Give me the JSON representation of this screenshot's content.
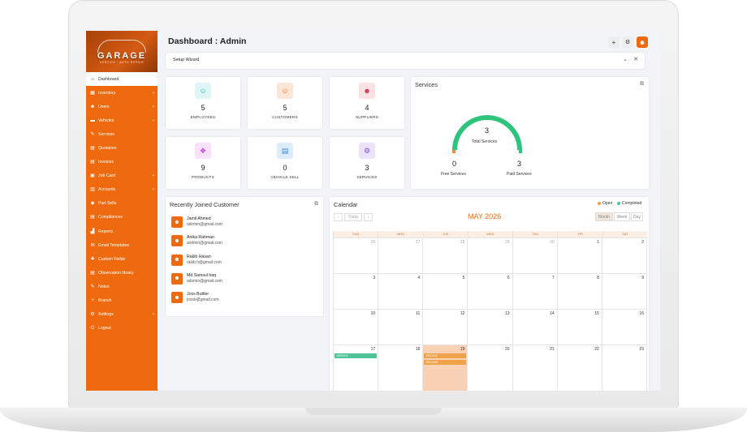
{
  "brand": {
    "name": "GARAGE",
    "tagline": "SERVICE · AUTO REPAIR"
  },
  "sidebar": {
    "items": [
      {
        "label": "Dashboard",
        "icon": "home-icon",
        "glyph": "⌂",
        "caret": false,
        "active": true
      },
      {
        "label": "Inventory",
        "icon": "box-icon",
        "glyph": "▦",
        "caret": true,
        "active": false
      },
      {
        "label": "Users",
        "icon": "user-icon",
        "glyph": "☻",
        "caret": true,
        "active": false
      },
      {
        "label": "Vehicles",
        "icon": "car-icon",
        "glyph": "▬",
        "caret": true,
        "active": false
      },
      {
        "label": "Services",
        "icon": "wrench-icon",
        "glyph": "✎",
        "caret": false,
        "active": false
      },
      {
        "label": "Quotation",
        "icon": "file-icon",
        "glyph": "▤",
        "caret": false,
        "active": false
      },
      {
        "label": "Invoices",
        "icon": "invoice-icon",
        "glyph": "▤",
        "caret": false,
        "active": false
      },
      {
        "label": "Job Card",
        "icon": "briefcase-icon",
        "glyph": "▣",
        "caret": true,
        "active": false
      },
      {
        "label": "Accounts",
        "icon": "wallet-icon",
        "glyph": "▥",
        "caret": true,
        "active": false
      },
      {
        "label": "Part Sells",
        "icon": "tag-icon",
        "glyph": "◆",
        "caret": false,
        "active": false
      },
      {
        "label": "Compliances",
        "icon": "document-icon",
        "glyph": "▤",
        "caret": false,
        "active": false
      },
      {
        "label": "Reports",
        "icon": "chart-icon",
        "glyph": "▟",
        "caret": false,
        "active": false
      },
      {
        "label": "Email Templates",
        "icon": "mail-icon",
        "glyph": "✉",
        "caret": false,
        "active": false
      },
      {
        "label": "Custom Fields",
        "icon": "puzzle-icon",
        "glyph": "✚",
        "caret": false,
        "active": false
      },
      {
        "label": "Observation library",
        "icon": "book-icon",
        "glyph": "▤",
        "caret": false,
        "active": false
      },
      {
        "label": "Notes",
        "icon": "note-icon",
        "glyph": "✎",
        "caret": false,
        "active": false
      },
      {
        "label": "Branch",
        "icon": "branch-icon",
        "glyph": "⑂",
        "caret": false,
        "active": false
      },
      {
        "label": "Settings",
        "icon": "gear-icon",
        "glyph": "⚙",
        "caret": true,
        "active": false
      },
      {
        "label": "Logout",
        "icon": "power-icon",
        "glyph": "⏻",
        "caret": false,
        "active": false
      }
    ]
  },
  "header": {
    "title": "Dashboard : Admin"
  },
  "wizard": {
    "label": "Setup Wizard"
  },
  "stats": [
    {
      "value": "5",
      "label": "EMPLOYEES",
      "icon": "employee-icon",
      "glyph": "☺",
      "color": "#1fb5b5",
      "bg": "#dff6f5"
    },
    {
      "value": "5",
      "label": "CUSTOMERS",
      "icon": "customer-icon",
      "glyph": "☺",
      "color": "#ef6a0e",
      "bg": "#fde6d7"
    },
    {
      "value": "4",
      "label": "SUPPLIERS",
      "icon": "suppliers-icon",
      "glyph": "☻",
      "color": "#d6324a",
      "bg": "#fbe1e4"
    },
    {
      "value": "9",
      "label": "PRODUCTS",
      "icon": "products-icon",
      "glyph": "❖",
      "color": "#c03bd6",
      "bg": "#f7e1fb"
    },
    {
      "value": "0",
      "label": "VEHICLE SELL",
      "icon": "vehicle-sell-icon",
      "glyph": "▤",
      "color": "#3b8ad6",
      "bg": "#dcecfb"
    },
    {
      "value": "3",
      "label": "SERVICES",
      "icon": "services-icon",
      "glyph": "⚙",
      "color": "#7b4bd6",
      "bg": "#ebe2fb"
    }
  ],
  "services": {
    "title": "Services",
    "total": "3",
    "total_label": "Total Services",
    "free": "0",
    "free_label": "Free Services",
    "paid": "3",
    "paid_label": "Paid Services",
    "paid_fraction": 1.0,
    "colors": {
      "paid": "#2ec47c",
      "free": "#ef8a4a"
    }
  },
  "customers": {
    "title": "Recently Joined Customer",
    "items": [
      {
        "name": "Jamil Ahmed",
        "email": "adcmin@gmail.com"
      },
      {
        "name": "Anika Rahman",
        "email": "avdmin@gmail.com"
      },
      {
        "name": "Rakib Hasan",
        "email": "rakib.h@gmail.com"
      },
      {
        "name": "Md Samsul haq",
        "email": "adsmin@gmail.com"
      },
      {
        "name": "Joss Buttler",
        "email": "jossb@gmail.com"
      }
    ]
  },
  "calendar": {
    "title": "Calendar",
    "legend": [
      {
        "label": "Open",
        "color": "#f0a248"
      },
      {
        "label": "Completed",
        "color": "#4fc49a"
      }
    ],
    "today_label": "Today",
    "month_label": "MAY 2026",
    "views": [
      "Month",
      "Week",
      "Day"
    ],
    "active_view": "Month",
    "weekdays": [
      "SUN",
      "MON",
      "TUE",
      "WED",
      "THU",
      "FRI",
      "SAT"
    ],
    "weeks": [
      [
        {
          "n": "26",
          "muted": true
        },
        {
          "n": "27",
          "muted": true
        },
        {
          "n": "28",
          "muted": true
        },
        {
          "n": "29",
          "muted": true
        },
        {
          "n": "30",
          "muted": true
        },
        {
          "n": "1"
        },
        {
          "n": "2"
        }
      ],
      [
        {
          "n": "3"
        },
        {
          "n": "4"
        },
        {
          "n": "5"
        },
        {
          "n": "6"
        },
        {
          "n": "7"
        },
        {
          "n": "8"
        },
        {
          "n": "9"
        }
      ],
      [
        {
          "n": "10"
        },
        {
          "n": "11"
        },
        {
          "n": "12"
        },
        {
          "n": "13"
        },
        {
          "n": "14"
        },
        {
          "n": "15"
        },
        {
          "n": "16"
        }
      ],
      [
        {
          "n": "17",
          "events": [
            {
              "label": "J000001",
              "status": "completed"
            }
          ]
        },
        {
          "n": "18"
        },
        {
          "n": "19",
          "today": true,
          "events": [
            {
              "label": "J000002",
              "status": "open"
            },
            {
              "label": "J000003",
              "status": "open"
            }
          ]
        },
        {
          "n": "20"
        },
        {
          "n": "21"
        },
        {
          "n": "22"
        },
        {
          "n": "23"
        }
      ]
    ]
  }
}
